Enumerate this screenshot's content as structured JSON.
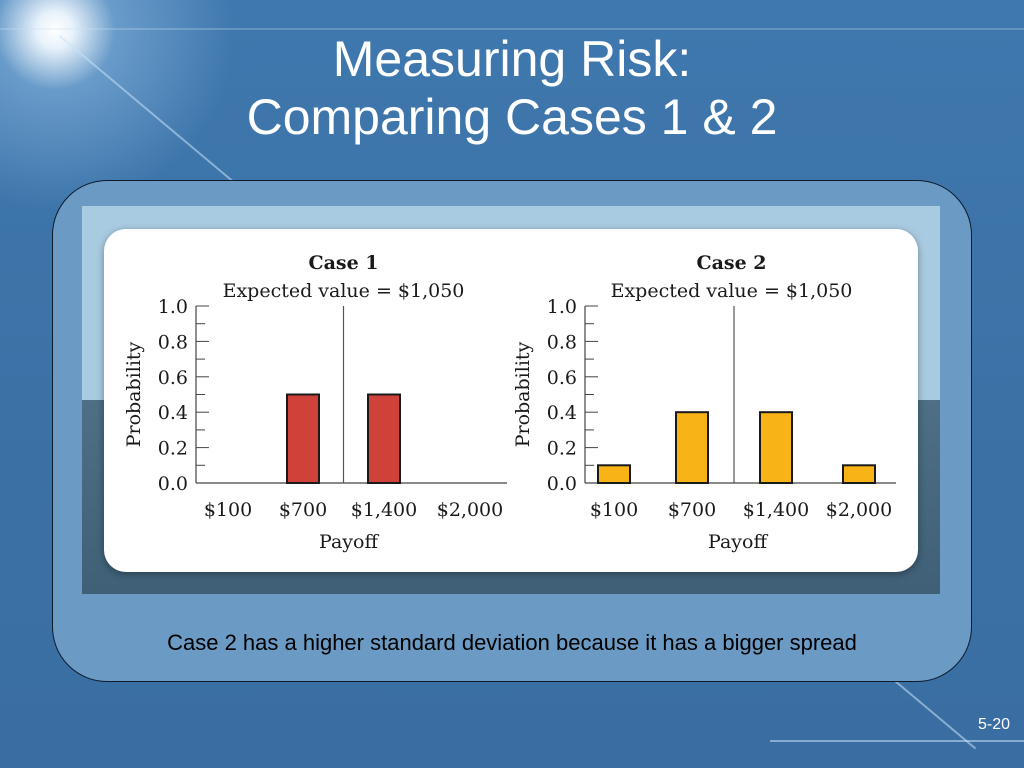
{
  "slide": {
    "title_line1": "Measuring Risk:",
    "title_line2": "Comparing Cases 1 & 2",
    "caption": "Case 2 has a higher standard deviation because it has a bigger spread",
    "page_number": "5-20",
    "colors": {
      "background": "#3c74a8",
      "case1_bar": "#d0413a",
      "case2_bar": "#f8b417"
    }
  },
  "chart_data": [
    {
      "type": "bar",
      "title": "Case 1",
      "subtitle": "Expected value = $1,050",
      "categories": [
        "$100",
        "$700",
        "$1,400",
        "$2,000"
      ],
      "values": [
        0,
        0.5,
        0.5,
        0
      ],
      "xlabel": "Payoff",
      "ylabel": "Probability",
      "ylim": [
        0,
        1.0
      ],
      "yticks": [
        "0.0",
        "0.2",
        "0.4",
        "0.6",
        "0.8",
        "1.0"
      ],
      "expected_value": 1050,
      "bar_color": "#d0413a"
    },
    {
      "type": "bar",
      "title": "Case 2",
      "subtitle": "Expected value = $1,050",
      "categories": [
        "$100",
        "$700",
        "$1,400",
        "$2,000"
      ],
      "values": [
        0.1,
        0.4,
        0.4,
        0.1
      ],
      "xlabel": "Payoff",
      "ylabel": "Probability",
      "ylim": [
        0,
        1.0
      ],
      "yticks": [
        "0.0",
        "0.2",
        "0.4",
        "0.6",
        "0.8",
        "1.0"
      ],
      "expected_value": 1050,
      "bar_color": "#f8b417"
    }
  ]
}
